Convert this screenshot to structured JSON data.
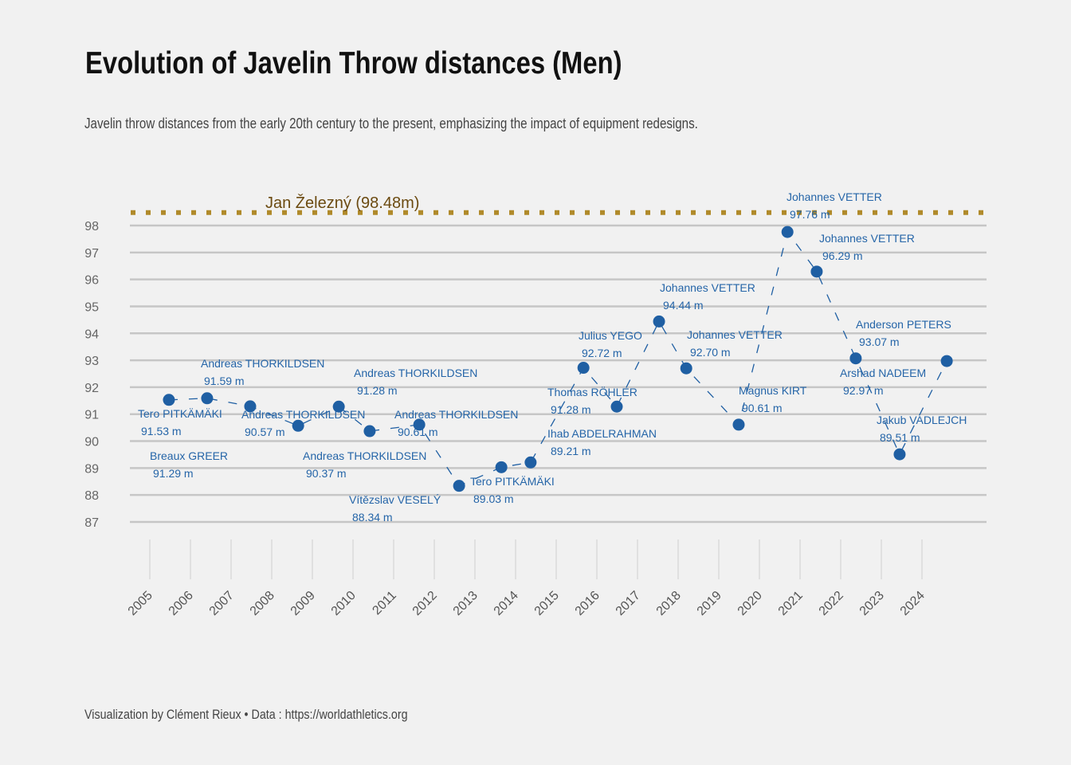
{
  "title": "Evolution of Javelin Throw distances (Men)",
  "subtitle": "Javelin throw distances from the early 20th century to the present, emphasizing the impact of equipment redesigns.",
  "caption": "Visualization by Clément Rieux • Data : https://worldathletics.org",
  "chart_data": {
    "type": "line",
    "line_style": "dashed",
    "markers": true,
    "grid": "horizontal",
    "xlabel": "",
    "ylabel": "",
    "xlim": [
      2005,
      2024
    ],
    "ylim": [
      87,
      98
    ],
    "x_ticks": [
      "2005",
      "2006",
      "2007",
      "2008",
      "2009",
      "2010",
      "2011",
      "2012",
      "2013",
      "2014",
      "2015",
      "2016",
      "2017",
      "2018",
      "2019",
      "2020",
      "2021",
      "2022",
      "2023",
      "2024"
    ],
    "y_ticks": [
      "87",
      "88",
      "89",
      "90",
      "91",
      "92",
      "93",
      "94",
      "95",
      "96",
      "97",
      "98"
    ],
    "series_color": "#1f5fa3",
    "points": [
      {
        "x": 2005.47,
        "y": 91.53,
        "athlete": "Tero PITKÄMÄKI",
        "label": "91.53 m"
      },
      {
        "x": 2006.41,
        "y": 91.59,
        "athlete": "Andreas THORKILDSEN",
        "label": "91.59 m"
      },
      {
        "x": 2007.47,
        "y": 91.29,
        "athlete": "Breaux GREER",
        "label": "91.29 m"
      },
      {
        "x": 2008.65,
        "y": 90.57,
        "athlete": "Andreas THORKILDSEN",
        "label": "90.57 m"
      },
      {
        "x": 2009.65,
        "y": 91.28,
        "athlete": "Andreas THORKILDSEN",
        "label": "91.28 m"
      },
      {
        "x": 2010.41,
        "y": 90.37,
        "athlete": "Andreas THORKILDSEN",
        "label": "90.37 m"
      },
      {
        "x": 2011.63,
        "y": 90.61,
        "athlete": "Andreas THORKILDSEN",
        "label": "90.61 m"
      },
      {
        "x": 2012.61,
        "y": 88.34,
        "athlete": "Vítězslav VESELÝ",
        "label": "88.34 m"
      },
      {
        "x": 2013.65,
        "y": 89.03,
        "athlete": "Tero PITKÄMÄKI",
        "label": "89.03 m"
      },
      {
        "x": 2014.37,
        "y": 89.21,
        "athlete": "Ihab ABDELRAHMAN",
        "label": "89.21 m"
      },
      {
        "x": 2015.67,
        "y": 92.72,
        "athlete": "Julius YEGO",
        "label": "92.72 m"
      },
      {
        "x": 2016.49,
        "y": 91.28,
        "athlete": "Thomas RÖHLER",
        "label": "91.28 m"
      },
      {
        "x": 2017.53,
        "y": 94.44,
        "athlete": "Johannes VETTER",
        "label": "94.44 m"
      },
      {
        "x": 2018.2,
        "y": 92.7,
        "athlete": "Johannes VETTER",
        "label": "92.70 m"
      },
      {
        "x": 2019.49,
        "y": 90.61,
        "athlete": "Magnus KIRT",
        "label": "90.61 m"
      },
      {
        "x": 2020.69,
        "y": 97.76,
        "athlete": "Johannes VETTER",
        "label": "97.76 m"
      },
      {
        "x": 2021.41,
        "y": 96.29,
        "athlete": "Johannes VETTER",
        "label": "96.29 m"
      },
      {
        "x": 2022.37,
        "y": 93.07,
        "athlete": "Anderson PETERS",
        "label": "93.07 m"
      },
      {
        "x": 2023.45,
        "y": 89.51,
        "athlete": "Jakub VADLEJCH",
        "label": "89.51 m"
      },
      {
        "x": 2024.61,
        "y": 92.97,
        "athlete": "Arshad NADEEM",
        "label": "92.97 m"
      }
    ],
    "reference_line": {
      "y": 98.48,
      "label": "Jan Železný (98.48m)",
      "color": "#b08a2a",
      "label_color": "#6b4a10",
      "style": "dotted"
    }
  }
}
